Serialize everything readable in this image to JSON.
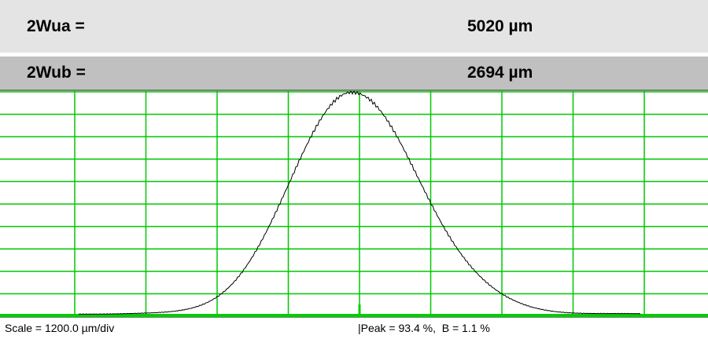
{
  "readouts": [
    {
      "label": "2Wua =",
      "value": "5020 µm"
    },
    {
      "label": "2Wub =",
      "value": "2694 µm"
    }
  ],
  "status": {
    "scale": "Scale = 1200.0 µm/div",
    "peak": "|Peak = 93.4 %,  B = 1.1 %"
  }
}
